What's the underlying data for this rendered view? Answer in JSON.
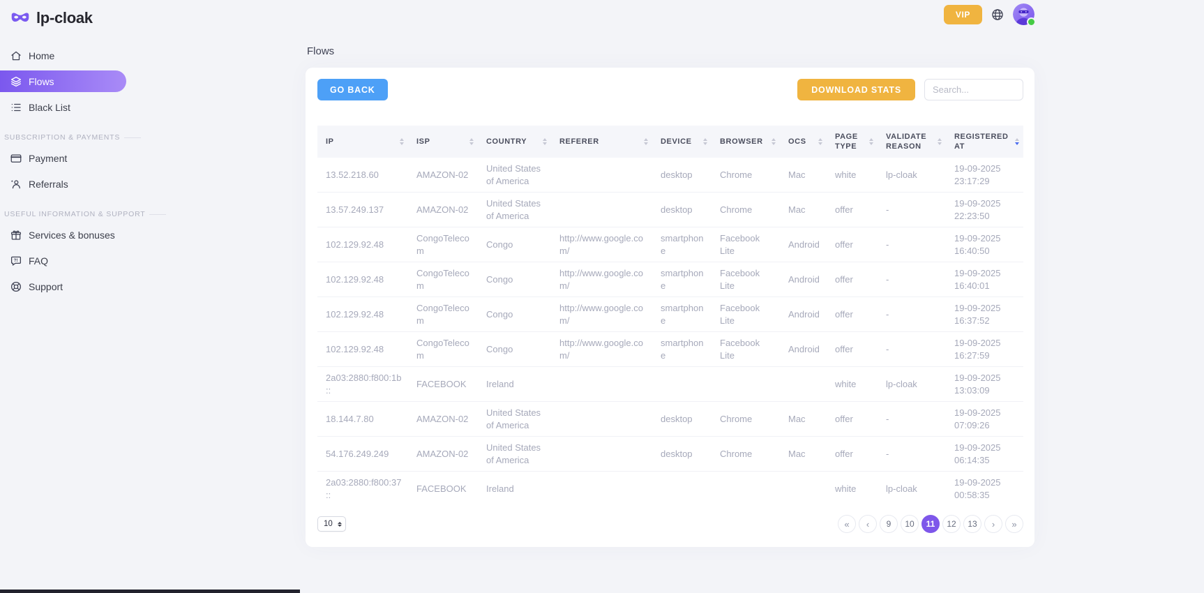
{
  "brand": {
    "name": "lp-cloak",
    "logo_icon": "mask-icon"
  },
  "topbar": {
    "vip_label": "VIP",
    "language_icon": "globe-icon",
    "avatar_icon": "avatar",
    "status": "online"
  },
  "sidebar": {
    "main_items": [
      {
        "label": "Home",
        "icon": "home-icon",
        "active": false
      },
      {
        "label": "Flows",
        "icon": "flows-icon",
        "active": true
      },
      {
        "label": "Black List",
        "icon": "blacklist-icon",
        "active": false
      }
    ],
    "sections": [
      {
        "label": "SUBSCRIPTION & PAYMENTS",
        "items": [
          {
            "label": "Payment",
            "icon": "payment-icon"
          },
          {
            "label": "Referrals",
            "icon": "referrals-icon"
          }
        ]
      },
      {
        "label": "USEFUL INFORMATION & SUPPORT",
        "items": [
          {
            "label": "Services & bonuses",
            "icon": "gift-icon"
          },
          {
            "label": "FAQ",
            "icon": "faq-icon"
          },
          {
            "label": "Support",
            "icon": "support-icon"
          }
        ]
      }
    ]
  },
  "page": {
    "title": "Flows"
  },
  "toolbar": {
    "go_back_label": "GO BACK",
    "download_stats_label": "DOWNLOAD STATS",
    "search_placeholder": "Search..."
  },
  "table": {
    "columns": [
      {
        "label": "IP",
        "sort_active": false
      },
      {
        "label": "ISP",
        "sort_active": false
      },
      {
        "label": "COUNTRY",
        "sort_active": false
      },
      {
        "label": "REFERER",
        "sort_active": false
      },
      {
        "label": "DEVICE",
        "sort_active": false
      },
      {
        "label": "BROWSER",
        "sort_active": false
      },
      {
        "label": "OCS",
        "sort_active": false
      },
      {
        "label": "PAGE TYPE",
        "sort_active": false
      },
      {
        "label": "VALIDATE REASON",
        "sort_active": false
      },
      {
        "label": "REGISTERED AT",
        "sort_active": true
      }
    ],
    "rows": [
      {
        "ip": "13.52.218.60",
        "isp": "AMAZON-02",
        "country": "United States of America",
        "referer": "",
        "device": "desktop",
        "browser": "Chrome",
        "ocs": "Mac",
        "page_type": "white",
        "validate_reason": "lp-cloak",
        "registered_date": "19-09-2025",
        "registered_time": "23:17:29"
      },
      {
        "ip": "13.57.249.137",
        "isp": "AMAZON-02",
        "country": "United States of America",
        "referer": "",
        "device": "desktop",
        "browser": "Chrome",
        "ocs": "Mac",
        "page_type": "offer",
        "validate_reason": "-",
        "registered_date": "19-09-2025",
        "registered_time": "22:23:50"
      },
      {
        "ip": "102.129.92.48",
        "isp": "CongoTelecom",
        "country": "Congo",
        "referer": "http://www.google.com/",
        "device": "smartphone",
        "browser": "Facebook Lite",
        "ocs": "Android",
        "page_type": "offer",
        "validate_reason": "-",
        "registered_date": "19-09-2025",
        "registered_time": "16:40:50"
      },
      {
        "ip": "102.129.92.48",
        "isp": "CongoTelecom",
        "country": "Congo",
        "referer": "http://www.google.com/",
        "device": "smartphone",
        "browser": "Facebook Lite",
        "ocs": "Android",
        "page_type": "offer",
        "validate_reason": "-",
        "registered_date": "19-09-2025",
        "registered_time": "16:40:01"
      },
      {
        "ip": "102.129.92.48",
        "isp": "CongoTelecom",
        "country": "Congo",
        "referer": "http://www.google.com/",
        "device": "smartphone",
        "browser": "Facebook Lite",
        "ocs": "Android",
        "page_type": "offer",
        "validate_reason": "-",
        "registered_date": "19-09-2025",
        "registered_time": "16:37:52"
      },
      {
        "ip": "102.129.92.48",
        "isp": "CongoTelecom",
        "country": "Congo",
        "referer": "http://www.google.com/",
        "device": "smartphone",
        "browser": "Facebook Lite",
        "ocs": "Android",
        "page_type": "offer",
        "validate_reason": "-",
        "registered_date": "19-09-2025",
        "registered_time": "16:27:59"
      },
      {
        "ip": "2a03:2880:f800:1b::",
        "isp": "FACEBOOK",
        "country": "Ireland",
        "referer": "",
        "device": "",
        "browser": "",
        "ocs": "",
        "page_type": "white",
        "validate_reason": "lp-cloak",
        "registered_date": "19-09-2025",
        "registered_time": "13:03:09"
      },
      {
        "ip": "18.144.7.80",
        "isp": "AMAZON-02",
        "country": "United States of America",
        "referer": "",
        "device": "desktop",
        "browser": "Chrome",
        "ocs": "Mac",
        "page_type": "offer",
        "validate_reason": "-",
        "registered_date": "19-09-2025",
        "registered_time": "07:09:26"
      },
      {
        "ip": "54.176.249.249",
        "isp": "AMAZON-02",
        "country": "United States of America",
        "referer": "",
        "device": "desktop",
        "browser": "Chrome",
        "ocs": "Mac",
        "page_type": "offer",
        "validate_reason": "-",
        "registered_date": "19-09-2025",
        "registered_time": "06:14:35"
      },
      {
        "ip": "2a03:2880:f800:37::",
        "isp": "FACEBOOK",
        "country": "Ireland",
        "referer": "",
        "device": "",
        "browser": "",
        "ocs": "",
        "page_type": "white",
        "validate_reason": "lp-cloak",
        "registered_date": "19-09-2025",
        "registered_time": "00:58:35"
      }
    ]
  },
  "pagination": {
    "page_size": "10",
    "pages": [
      {
        "label": "«",
        "name": "first-page",
        "active": false,
        "glyph": true
      },
      {
        "label": "‹",
        "name": "prev-page",
        "active": false,
        "glyph": true
      },
      {
        "label": "9",
        "name": "page-9",
        "active": false,
        "glyph": false
      },
      {
        "label": "10",
        "name": "page-10",
        "active": false,
        "glyph": false
      },
      {
        "label": "11",
        "name": "page-11",
        "active": true,
        "glyph": false
      },
      {
        "label": "12",
        "name": "page-12",
        "active": false,
        "glyph": false
      },
      {
        "label": "13",
        "name": "page-13",
        "active": false,
        "glyph": false
      },
      {
        "label": "›",
        "name": "next-page",
        "active": false,
        "glyph": true
      },
      {
        "label": "»",
        "name": "last-page",
        "active": false,
        "glyph": true
      }
    ]
  },
  "colors": {
    "accent_purple": "#7E57EA",
    "button_blue": "#4DA0F7",
    "button_orange": "#F0B440",
    "status_green": "#45CB45",
    "background": "#F3F4F8"
  }
}
